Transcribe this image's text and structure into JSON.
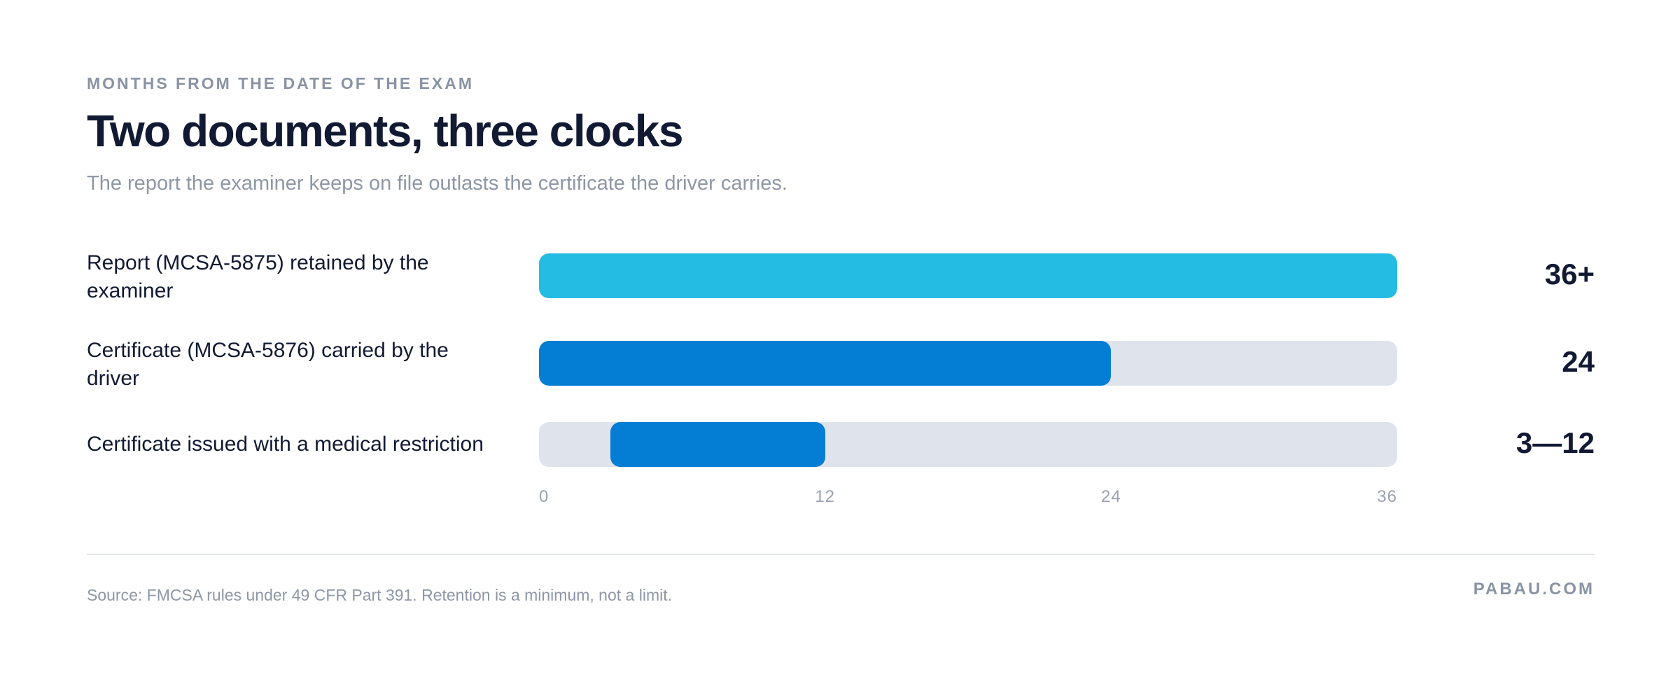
{
  "header": {
    "eyebrow": "MONTHS FROM THE DATE OF THE EXAM",
    "title": "Two documents, three clocks",
    "subtitle": "The report the examiner keeps on file outlasts the certificate the driver carries."
  },
  "footer": {
    "source": "Source: FMCSA rules under 49 CFR Part 391. Retention is a minimum, not a limit.",
    "brand": "PABAU.COM"
  },
  "colors": {
    "report": "#25bce3",
    "certificate": "#047dd4",
    "track": "#dfe3ec"
  },
  "chart_data": {
    "type": "bar",
    "orientation": "horizontal",
    "xlim": [
      0,
      36
    ],
    "ticks": [
      "0",
      "12",
      "24",
      "36"
    ],
    "tick_values": [
      0,
      12,
      24,
      36
    ],
    "grid": false,
    "rows": [
      {
        "label": "Report (MCSA-5875) retained by the examiner",
        "value_label": "36+",
        "start": 0,
        "end": 36,
        "color": "#25bce3"
      },
      {
        "label": "Certificate (MCSA-5876) carried by the driver",
        "value_label": "24",
        "start": 0,
        "end": 24,
        "color": "#047dd4"
      },
      {
        "label": "Certificate issued with a medical restriction",
        "value_label": "3—12",
        "start": 3,
        "end": 12,
        "color": "#047dd4"
      }
    ]
  }
}
